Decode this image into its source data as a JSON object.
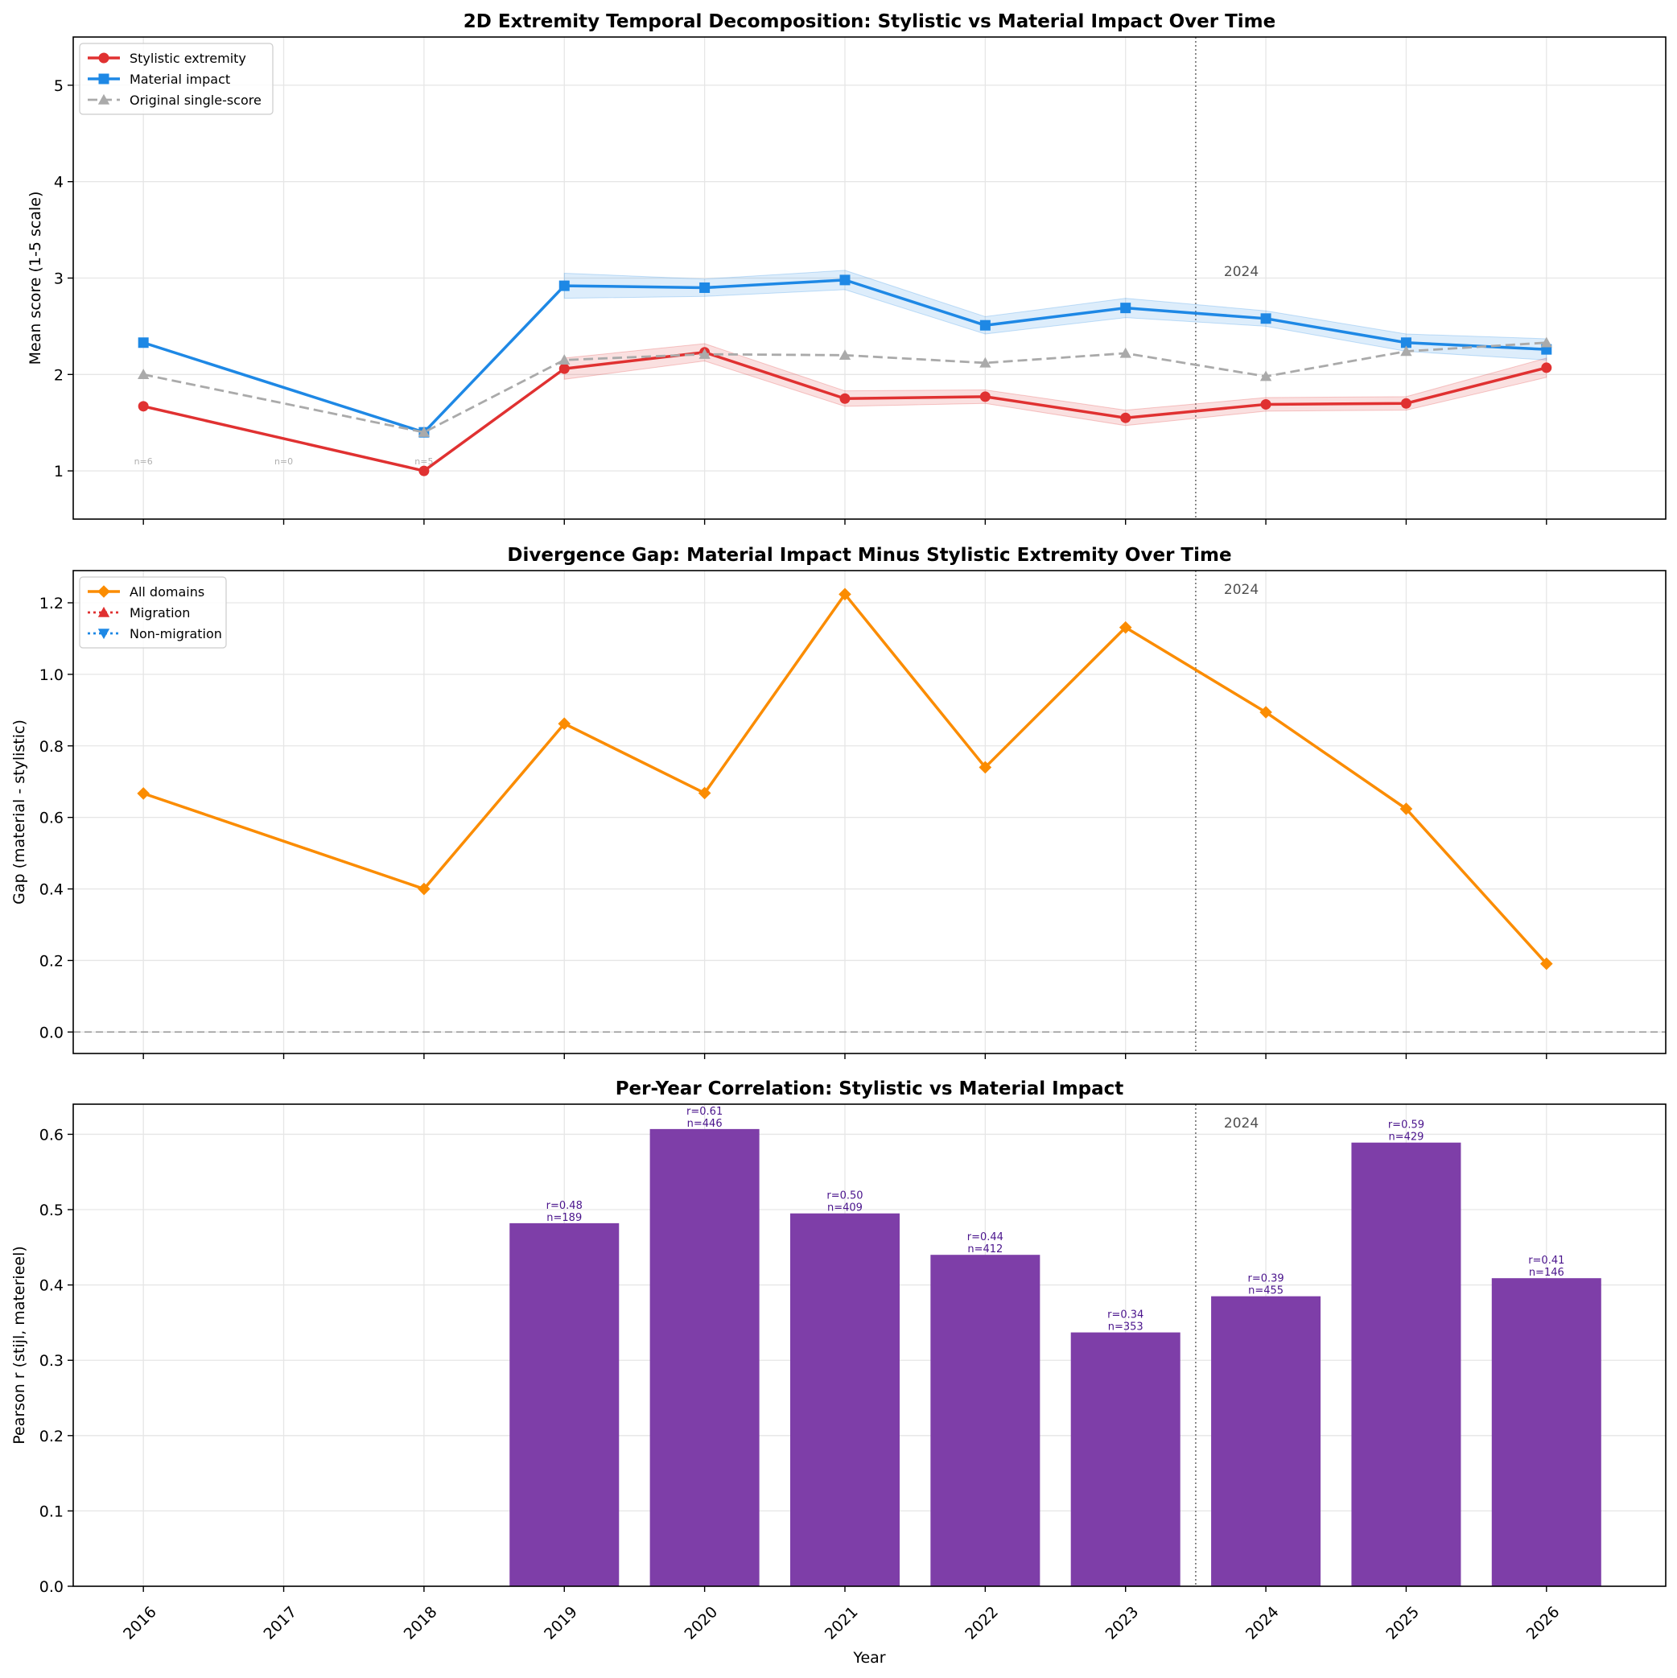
{
  "chart_data": [
    {
      "type": "line",
      "title": "2D Extremity Temporal Decomposition: Stylistic vs Material Impact Over Time",
      "xlabel": "",
      "ylabel": "Mean score (1-5 scale)",
      "x_ticks": [
        2016,
        2017,
        2018,
        2019,
        2020,
        2021,
        2022,
        2023,
        2024,
        2025,
        2026
      ],
      "xlim": [
        2015.5,
        2026.85
      ],
      "ylim": [
        0.5,
        5.5
      ],
      "y_ticks": [
        1,
        2,
        3,
        4,
        5
      ],
      "grid": true,
      "legend_position": "top-left",
      "reference_line": {
        "x": 2023.5,
        "label": "2024"
      },
      "series": [
        {
          "name": "Stylistic extremity",
          "color": "#e03131",
          "marker": "circle",
          "line_style": "solid",
          "x": [
            2016,
            2018,
            2019,
            2020,
            2021,
            2022,
            2023,
            2024,
            2025,
            2026
          ],
          "values": [
            1.67,
            1.0,
            2.06,
            2.23,
            1.75,
            1.77,
            1.55,
            1.69,
            1.7,
            2.07
          ],
          "band": [
            0,
            0,
            0.11,
            0.09,
            0.08,
            0.07,
            0.08,
            0.07,
            0.07,
            0.1
          ]
        },
        {
          "name": "Material impact",
          "color": "#1e88e5",
          "marker": "square",
          "line_style": "solid",
          "x": [
            2016,
            2018,
            2019,
            2020,
            2021,
            2022,
            2023,
            2024,
            2025,
            2026
          ],
          "values": [
            2.33,
            1.4,
            2.92,
            2.9,
            2.98,
            2.51,
            2.69,
            2.58,
            2.33,
            2.26
          ],
          "band": [
            0,
            0,
            0.13,
            0.09,
            0.1,
            0.09,
            0.1,
            0.08,
            0.09,
            0.11
          ]
        },
        {
          "name": "Original single-score",
          "color": "#aaaaaa",
          "marker": "triangle",
          "line_style": "dashed",
          "x": [
            2016,
            2018,
            2019,
            2020,
            2021,
            2022,
            2023,
            2024,
            2025,
            2026
          ],
          "values": [
            2.0,
            1.4,
            2.15,
            2.21,
            2.2,
            2.12,
            2.22,
            1.98,
            2.24,
            2.33
          ]
        }
      ],
      "annotations": [
        {
          "x": 2016,
          "y": 1.1,
          "text": "n=6"
        },
        {
          "x": 2017,
          "y": 1.1,
          "text": "n=0"
        },
        {
          "x": 2018,
          "y": 1.1,
          "text": "n=5"
        }
      ]
    },
    {
      "type": "line",
      "title": "Divergence Gap: Material Impact Minus Stylistic Extremity Over Time",
      "xlabel": "",
      "ylabel": "Gap (material - stylistic)",
      "x_ticks": [
        2016,
        2017,
        2018,
        2019,
        2020,
        2021,
        2022,
        2023,
        2024,
        2025,
        2026
      ],
      "xlim": [
        2015.5,
        2026.85
      ],
      "ylim": [
        -0.06,
        1.29
      ],
      "y_ticks": [
        0.0,
        0.2,
        0.4,
        0.6,
        0.8,
        1.0,
        1.2
      ],
      "grid": true,
      "legend_position": "top-left",
      "reference_line": {
        "x": 2023.5,
        "label": "2024"
      },
      "zero_line": true,
      "series": [
        {
          "name": "All domains",
          "color": "#fb8c00",
          "marker": "diamond",
          "line_style": "solid",
          "x": [
            2016,
            2018,
            2019,
            2020,
            2021,
            2022,
            2023,
            2024,
            2025,
            2026
          ],
          "values": [
            0.667,
            0.4,
            0.862,
            0.668,
            1.224,
            0.74,
            1.131,
            0.894,
            0.624,
            0.191
          ]
        },
        {
          "name": "Migration",
          "color": "#e03131",
          "marker": "triangle",
          "line_style": "dotted",
          "x": [],
          "values": []
        },
        {
          "name": "Non-migration",
          "color": "#1e88e5",
          "marker": "triangle-down",
          "line_style": "dotted",
          "x": [],
          "values": []
        }
      ]
    },
    {
      "type": "bar",
      "title": "Per-Year Correlation: Stylistic vs Material Impact",
      "xlabel": "Year",
      "ylabel": "Pearson r (stijl, materieel)",
      "x_ticks": [
        2016,
        2017,
        2018,
        2019,
        2020,
        2021,
        2022,
        2023,
        2024,
        2025,
        2026
      ],
      "xlim": [
        2015.5,
        2026.85
      ],
      "ylim": [
        0,
        0.64
      ],
      "y_ticks": [
        0.0,
        0.1,
        0.2,
        0.3,
        0.4,
        0.5,
        0.6
      ],
      "grid": true,
      "reference_line": {
        "x": 2023.5,
        "label": "2024"
      },
      "bar_color": "#7e3ea8",
      "label_color": "#4a148c",
      "categories": [
        2019,
        2020,
        2021,
        2022,
        2023,
        2024,
        2025,
        2026
      ],
      "values": [
        0.482,
        0.607,
        0.495,
        0.44,
        0.337,
        0.385,
        0.589,
        0.409
      ],
      "labels_r": [
        "r=0.48",
        "r=0.61",
        "r=0.50",
        "r=0.44",
        "r=0.34",
        "r=0.39",
        "r=0.59",
        "r=0.41"
      ],
      "labels_n": [
        "n=189",
        "n=446",
        "n=409",
        "n=412",
        "n=353",
        "n=455",
        "n=429",
        "n=146"
      ]
    }
  ]
}
